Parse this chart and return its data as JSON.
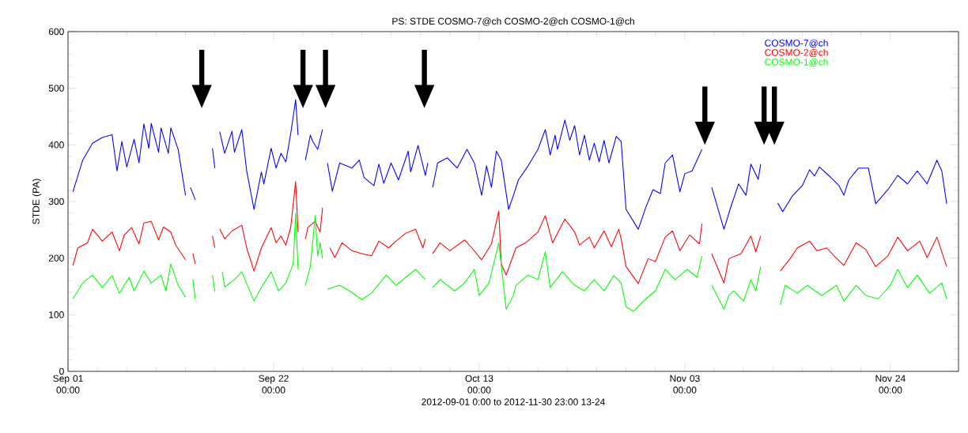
{
  "chart_data": {
    "type": "line",
    "title": "PS: STDE COSMO-7@ch COSMO-2@ch COSMO-1@ch",
    "xlabel": "2012-09-01  0:00 to 2012-11-30 23:00 13-24",
    "ylabel": "STDE (PA)",
    "xlim": [
      "2012-09-01T00:00",
      "2012-11-30T23:00"
    ],
    "xticks": [
      {
        "value": "2012-09-01",
        "label": "Sep 01 00:00"
      },
      {
        "value": "2012-09-22",
        "label": "Sep 22 00:00"
      },
      {
        "value": "2012-10-13",
        "label": "Oct 13 00:00"
      },
      {
        "value": "2012-11-03",
        "label": "Nov 03 00:00"
      },
      {
        "value": "2012-11-24",
        "label": "Nov 24 00:00"
      }
    ],
    "ylim": [
      0,
      600
    ],
    "yticks": [
      0,
      100,
      200,
      300,
      400,
      500,
      600
    ],
    "legend": "top right",
    "series": [
      {
        "name": "COSMO-7@ch",
        "color": "#0000ff",
        "x": [
          "2012-09-01T12:00",
          "2012-09-02T12:00",
          "2012-09-03T12:00",
          "2012-09-04T12:00",
          "2012-09-05T12:00",
          "2012-09-06T00:00",
          "2012-09-06T12:00",
          "2012-09-07T00:00",
          "2012-09-07T18:00",
          "2012-09-08T06:00",
          "2012-09-08T18:00",
          "2012-09-09T06:00",
          "2012-09-09T12:00",
          "2012-09-10T06:00",
          "2012-09-10T12:00",
          "2012-09-11T06:00",
          "2012-09-11T12:00",
          "2012-09-12T06:00",
          "2012-09-13T00:00",
          "2012-09-13T06:00",
          "2012-09-13T12:00",
          "2012-09-14T00:00",
          "2012-09-14T18:00",
          "2012-09-15T18:00",
          "2012-09-16T00:00",
          "2012-09-16T06:00",
          "2012-09-16T12:00",
          "2012-09-17T00:00",
          "2012-09-17T18:00",
          "2012-09-18T00:00",
          "2012-09-18T18:00",
          "2012-09-19T06:00",
          "2012-09-20T00:00",
          "2012-09-20T18:00",
          "2012-09-21T00:00",
          "2012-09-21T18:00",
          "2012-09-22T06:00",
          "2012-09-22T18:00",
          "2012-09-23T06:00",
          "2012-09-23T18:00",
          "2012-09-24T06:00",
          "2012-09-24T12:00",
          "2012-09-24T18:00",
          "2012-09-25T06:00",
          "2012-09-25T18:00",
          "2012-09-26T00:00",
          "2012-09-26T12:00",
          "2012-09-27T00:00",
          "2012-09-27T06:00",
          "2012-09-27T12:00",
          "2012-09-28T00:00",
          "2012-09-28T18:00",
          "2012-09-30T00:00",
          "2012-09-30T18:00",
          "2012-10-01T06:00",
          "2012-10-02T06:00",
          "2012-10-02T18:00",
          "2012-10-03T06:00",
          "2012-10-04T00:00",
          "2012-10-04T18:00",
          "2012-10-05T18:00",
          "2012-10-06T00:00",
          "2012-10-06T18:00",
          "2012-10-07T12:00",
          "2012-10-07T18:00",
          "2012-10-08T00:00",
          "2012-10-08T06:00",
          "2012-10-08T18:00",
          "2012-10-09T18:00",
          "2012-10-10T18:00",
          "2012-10-11T18:00",
          "2012-10-12T12:00",
          "2012-10-13T06:00",
          "2012-10-13T18:00",
          "2012-10-14T06:00",
          "2012-10-14T18:00",
          "2012-10-15T06:00",
          "2012-10-16T00:00",
          "2012-10-16T12:00",
          "2012-10-17T00:00",
          "2012-10-18T00:00",
          "2012-10-19T00:00",
          "2012-10-19T18:00",
          "2012-10-20T06:00",
          "2012-10-20T18:00",
          "2012-10-21T00:00",
          "2012-10-21T18:00",
          "2012-10-22T06:00",
          "2012-10-22T18:00",
          "2012-10-23T06:00",
          "2012-10-23T18:00",
          "2012-10-24T06:00",
          "2012-10-24T18:00",
          "2012-10-25T06:00",
          "2012-10-25T18:00",
          "2012-10-26T06:00",
          "2012-10-27T00:00",
          "2012-10-27T12:00",
          "2012-10-28T00:00",
          "2012-10-29T06:00",
          "2012-10-30T00:00",
          "2012-10-30T18:00",
          "2012-10-31T12:00",
          "2012-11-01T00:00",
          "2012-11-01T18:00",
          "2012-11-02T12:00",
          "2012-11-03T00:00",
          "2012-11-03T18:00",
          "2012-11-04T18:00",
          "2012-11-05T06:00",
          "2012-11-05T18:00",
          "2012-11-07T00:00",
          "2012-11-07T18:00",
          "2012-11-08T12:00",
          "2012-11-09T06:00",
          "2012-11-09T18:00",
          "2012-11-10T12:00",
          "2012-11-10T18:00",
          "2012-11-11T18:00",
          "2012-11-12T12:00",
          "2012-11-13T00:00",
          "2012-11-14T00:00",
          "2012-11-15T00:00",
          "2012-11-15T18:00",
          "2012-11-16T06:00",
          "2012-11-16T18:00",
          "2012-11-17T18:00",
          "2012-11-18T18:00",
          "2012-11-19T06:00",
          "2012-11-19T18:00",
          "2012-11-20T18:00",
          "2012-11-21T18:00",
          "2012-11-22T12:00",
          "2012-11-23T18:00",
          "2012-11-24T18:00",
          "2012-11-25T18:00",
          "2012-11-26T18:00",
          "2012-11-27T18:00",
          "2012-11-28T18:00",
          "2012-11-29T06:00",
          "2012-11-29T18:00"
        ],
        "values": [
          317,
          373,
          403,
          413,
          418,
          354,
          406,
          361,
          410,
          368,
          437,
          394,
          438,
          387,
          430,
          385,
          430,
          392,
          311,
          null,
          325,
          303,
          null,
          394,
          359,
          null,
          423,
          385,
          424,
          387,
          427,
          354,
          286,
          352,
          331,
          394,
          359,
          385,
          370,
          420,
          480,
          417,
          null,
          373,
          417,
          406,
          392,
          427,
          null,
          368,
          318,
          368,
          359,
          373,
          342,
          328,
          366,
          332,
          368,
          338,
          389,
          352,
          399,
          346,
          368,
          null,
          325,
          368,
          377,
          359,
          392,
          368,
          311,
          363,
          325,
          389,
          373,
          286,
          311,
          338,
          363,
          392,
          427,
          382,
          417,
          392,
          444,
          408,
          434,
          382,
          417,
          373,
          403,
          370,
          408,
          368,
          415,
          406,
          286,
          251,
          289,
          321,
          314,
          368,
          382,
          317,
          349,
          354,
          392,
          null,
          325,
          251,
          293,
          331,
          311,
          366,
          339,
          366,
          null,
          297,
          282,
          310,
          328,
          356,
          345,
          361,
          345,
          328,
          311,
          338,
          359,
          359,
          296,
          321,
          346,
          331,
          354,
          331,
          373,
          354,
          296
        ]
      },
      {
        "name": "COSMO-2@ch",
        "color": "#ff0000",
        "x": [
          "2012-09-01T12:00",
          "2012-09-02T00:00",
          "2012-09-03T00:00",
          "2012-09-03T12:00",
          "2012-09-04T12:00",
          "2012-09-05T12:00",
          "2012-09-06T06:00",
          "2012-09-06T18:00",
          "2012-09-07T12:00",
          "2012-09-08T06:00",
          "2012-09-08T18:00",
          "2012-09-09T12:00",
          "2012-09-10T06:00",
          "2012-09-10T18:00",
          "2012-09-11T12:00",
          "2012-09-12T00:00",
          "2012-09-13T00:00",
          "2012-09-13T06:00",
          "2012-09-13T18:00",
          "2012-09-14T00:00",
          "2012-09-15T00:00",
          "2012-09-15T18:00",
          "2012-09-16T00:00",
          "2012-09-16T06:00",
          "2012-09-16T12:00",
          "2012-09-17T00:00",
          "2012-09-17T18:00",
          "2012-09-18T18:00",
          "2012-09-19T06:00",
          "2012-09-20T00:00",
          "2012-09-20T18:00",
          "2012-09-21T18:00",
          "2012-09-22T06:00",
          "2012-09-22T18:00",
          "2012-09-23T06:00",
          "2012-09-23T18:00",
          "2012-09-24T06:00",
          "2012-09-24T12:00",
          "2012-09-24T18:00",
          "2012-09-25T06:00",
          "2012-09-25T12:00",
          "2012-09-26T06:00",
          "2012-09-26T18:00",
          "2012-09-27T00:00",
          "2012-09-27T06:00",
          "2012-09-27T18:00",
          "2012-09-28T06:00",
          "2012-09-29T00:00",
          "2012-09-30T00:00",
          "2012-10-01T00:00",
          "2012-10-02T00:00",
          "2012-10-02T18:00",
          "2012-10-03T18:00",
          "2012-10-04T12:00",
          "2012-10-05T12:00",
          "2012-10-06T12:00",
          "2012-10-07T06:00",
          "2012-10-07T12:00",
          "2012-10-07T18:00",
          "2012-10-08T06:00",
          "2012-10-09T00:00",
          "2012-10-10T00:00",
          "2012-10-11T12:00",
          "2012-10-12T06:00",
          "2012-10-13T06:00",
          "2012-10-14T06:00",
          "2012-10-15T00:00",
          "2012-10-15T06:00",
          "2012-10-15T18:00",
          "2012-10-16T18:00",
          "2012-10-17T18:00",
          "2012-10-19T00:00",
          "2012-10-19T18:00",
          "2012-10-20T12:00",
          "2012-10-21T18:00",
          "2012-10-22T18:00",
          "2012-10-23T06:00",
          "2012-10-24T06:00",
          "2012-10-24T18:00",
          "2012-10-25T18:00",
          "2012-10-26T12:00",
          "2012-10-27T06:00",
          "2012-10-27T12:00",
          "2012-10-28T00:00",
          "2012-10-29T06:00",
          "2012-10-30T06:00",
          "2012-10-31T00:00",
          "2012-11-01T00:00",
          "2012-11-01T18:00",
          "2012-11-02T12:00",
          "2012-11-03T12:00",
          "2012-11-04T12:00",
          "2012-11-04T18:00",
          "2012-11-05T06:00",
          "2012-11-05T18:00",
          "2012-11-07T00:00",
          "2012-11-07T12:00",
          "2012-11-08T18:00",
          "2012-11-09T18:00",
          "2012-11-10T06:00",
          "2012-11-10T18:00",
          "2012-11-11T18:00",
          "2012-11-12T18:00",
          "2012-11-13T18:00",
          "2012-11-14T12:00",
          "2012-11-15T18:00",
          "2012-11-16T12:00",
          "2012-11-17T12:00",
          "2012-11-18T06:00",
          "2012-11-19T06:00",
          "2012-11-20T12:00",
          "2012-11-21T12:00",
          "2012-11-22T12:00",
          "2012-11-23T18:00",
          "2012-11-24T18:00",
          "2012-11-25T18:00",
          "2012-11-27T00:00",
          "2012-11-27T18:00",
          "2012-11-28T18:00",
          "2012-11-29T18:00"
        ],
        "values": [
          187,
          218,
          227,
          251,
          230,
          246,
          213,
          241,
          254,
          225,
          262,
          265,
          232,
          255,
          246,
          223,
          197,
          null,
          208,
          190,
          null,
          239,
          218,
          null,
          251,
          234,
          248,
          258,
          218,
          177,
          218,
          254,
          227,
          239,
          223,
          255,
          335,
          246,
          null,
          234,
          254,
          265,
          246,
          289,
          null,
          218,
          201,
          227,
          213,
          208,
          204,
          230,
          218,
          230,
          244,
          251,
          218,
          234,
          null,
          208,
          227,
          213,
          232,
          218,
          197,
          225,
          283,
          190,
          170,
          218,
          227,
          246,
          275,
          227,
          269,
          246,
          223,
          237,
          218,
          248,
          220,
          251,
          234,
          185,
          155,
          199,
          194,
          237,
          248,
          213,
          241,
          225,
          261,
          null,
          208,
          156,
          199,
          208,
          239,
          211,
          239,
          null,
          177,
          199,
          218,
          230,
          213,
          218,
          204,
          187,
          227,
          215,
          185,
          204,
          237,
          213,
          230,
          201,
          237,
          185
        ]
      },
      {
        "name": "COSMO-1@ch",
        "color": "#00ff00",
        "x": [
          "2012-09-01T12:00",
          "2012-09-02T12:00",
          "2012-09-03T12:00",
          "2012-09-04T12:00",
          "2012-09-05T12:00",
          "2012-09-06T06:00",
          "2012-09-07T06:00",
          "2012-09-07T18:00",
          "2012-09-08T18:00",
          "2012-09-09T12:00",
          "2012-09-10T12:00",
          "2012-09-11T00:00",
          "2012-09-11T12:00",
          "2012-09-12T06:00",
          "2012-09-13T00:00",
          "2012-09-13T06:00",
          "2012-09-13T18:00",
          "2012-09-14T00:00",
          "2012-09-15T00:00",
          "2012-09-15T18:00",
          "2012-09-16T00:00",
          "2012-09-16T06:00",
          "2012-09-16T18:00",
          "2012-09-17T00:00",
          "2012-09-18T00:00",
          "2012-09-18T18:00",
          "2012-09-20T00:00",
          "2012-09-20T18:00",
          "2012-09-21T18:00",
          "2012-09-22T12:00",
          "2012-09-23T06:00",
          "2012-09-24T00:00",
          "2012-09-24T06:00",
          "2012-09-24T12:00",
          "2012-09-24T18:00",
          "2012-09-25T06:00",
          "2012-09-25T18:00",
          "2012-09-26T06:00",
          "2012-09-26T12:00",
          "2012-09-26T18:00",
          "2012-09-27T00:00",
          "2012-09-27T06:00",
          "2012-09-27T12:00",
          "2012-09-28T18:00",
          "2012-09-29T18:00",
          "2012-10-01T00:00",
          "2012-10-02T00:00",
          "2012-10-03T12:00",
          "2012-10-04T12:00",
          "2012-10-05T12:00",
          "2012-10-06T12:00",
          "2012-10-07T12:00",
          "2012-10-07T18:00",
          "2012-10-08T06:00",
          "2012-10-09T00:00",
          "2012-10-10T12:00",
          "2012-10-11T12:00",
          "2012-10-12T12:00",
          "2012-10-13T00:00",
          "2012-10-14T00:00",
          "2012-10-15T00:00",
          "2012-10-15T18:00",
          "2012-10-16T12:00",
          "2012-10-16T18:00",
          "2012-10-18T00:00",
          "2012-10-19T00:00",
          "2012-10-19T18:00",
          "2012-10-20T06:00",
          "2012-10-21T12:00",
          "2012-10-22T18:00",
          "2012-10-23T18:00",
          "2012-10-24T18:00",
          "2012-10-25T18:00",
          "2012-10-26T18:00",
          "2012-10-27T12:00",
          "2012-10-28T00:00",
          "2012-10-28T18:00",
          "2012-10-30T00:00",
          "2012-10-31T00:00",
          "2012-11-01T00:00",
          "2012-11-02T00:00",
          "2012-11-03T06:00",
          "2012-11-04T06:00",
          "2012-11-04T18:00",
          "2012-11-05T06:00",
          "2012-11-05T18:00",
          "2012-11-07T00:00",
          "2012-11-07T12:00",
          "2012-11-08T00:00",
          "2012-11-09T00:00",
          "2012-11-09T18:00",
          "2012-11-10T06:00",
          "2012-11-10T18:00",
          "2012-11-11T18:00",
          "2012-11-12T18:00",
          "2012-11-13T06:00",
          "2012-11-14T12:00",
          "2012-11-15T12:00",
          "2012-11-17T00:00",
          "2012-11-18T12:00",
          "2012-11-19T06:00",
          "2012-11-20T12:00",
          "2012-11-21T12:00",
          "2012-11-22T18:00",
          "2012-11-24T00:00",
          "2012-11-24T18:00",
          "2012-11-25T18:00",
          "2012-11-26T18:00",
          "2012-11-28T00:00",
          "2012-11-29T06:00",
          "2012-11-29T18:00"
        ],
        "values": [
          128,
          156,
          170,
          148,
          169,
          138,
          166,
          142,
          177,
          156,
          170,
          142,
          190,
          152,
          131,
          null,
          162,
          128,
          null,
          170,
          141,
          null,
          176,
          149,
          162,
          176,
          124,
          148,
          176,
          142,
          156,
          190,
          279,
          180,
          null,
          152,
          185,
          275,
          204,
          227,
          199,
          null,
          145,
          152,
          142,
          127,
          138,
          170,
          152,
          166,
          180,
          162,
          null,
          148,
          162,
          142,
          156,
          180,
          134,
          156,
          227,
          110,
          134,
          152,
          170,
          162,
          211,
          148,
          176,
          152,
          142,
          162,
          142,
          169,
          156,
          114,
          106,
          128,
          142,
          180,
          162,
          180,
          166,
          204,
          null,
          152,
          110,
          134,
          142,
          124,
          162,
          142,
          185,
          null,
          117,
          152,
          138,
          152,
          134,
          152,
          124,
          152,
          134,
          128,
          152,
          180,
          148,
          170,
          138,
          156,
          128
        ]
      }
    ]
  }
}
